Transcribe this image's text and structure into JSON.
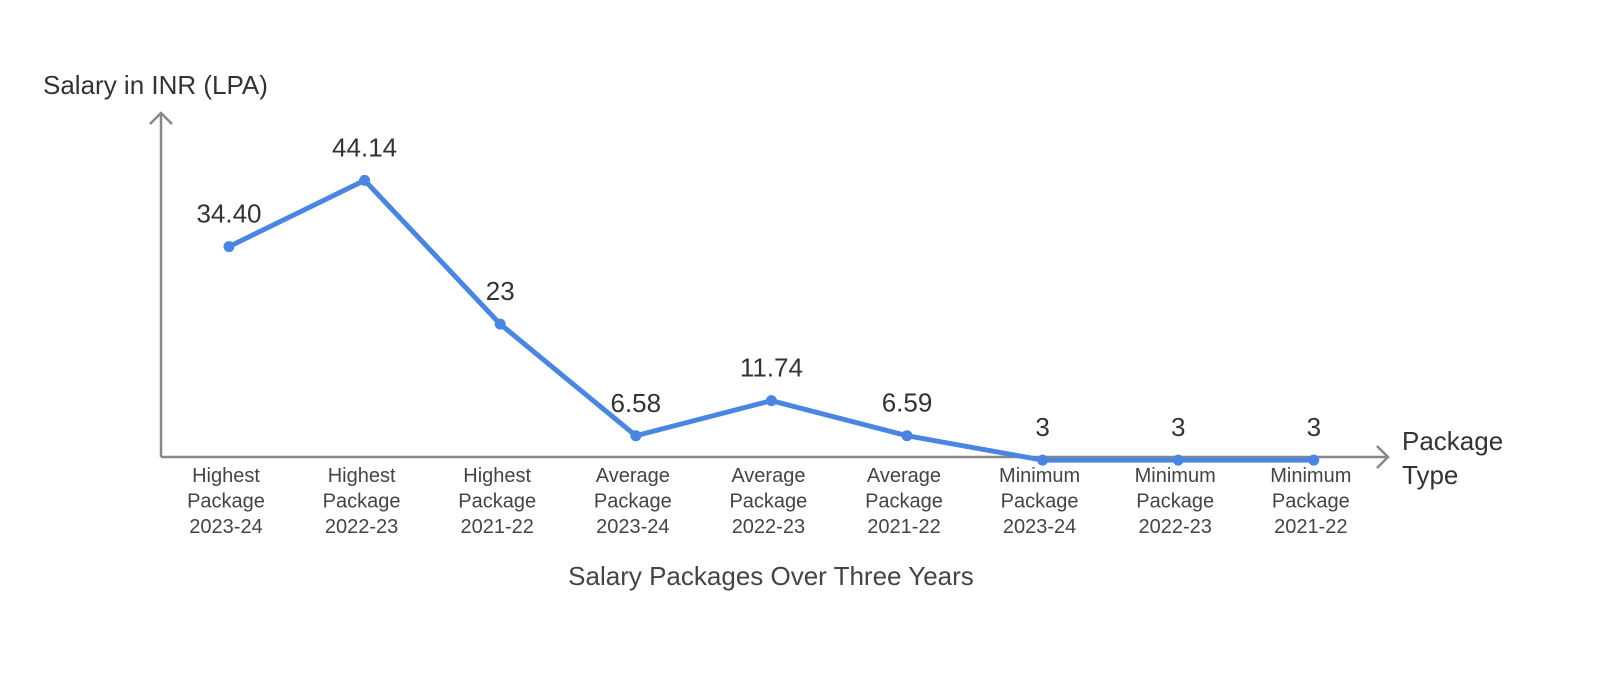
{
  "chart_data": {
    "type": "line",
    "title": "Salary Packages Over Three Years",
    "ylabel": "Salary in INR (LPA)",
    "xlabel": [
      "Package",
      "Type"
    ],
    "ylim": [
      0,
      50
    ],
    "grid": false,
    "categories": [
      [
        "Highest",
        "Package",
        "2023-24"
      ],
      [
        "Highest",
        "Package",
        "2022-23"
      ],
      [
        "Highest",
        "Package",
        "2021-22"
      ],
      [
        "Average",
        "Package",
        "2023-24"
      ],
      [
        "Average",
        "Package",
        "2022-23"
      ],
      [
        "Average",
        "Package",
        "2021-22"
      ],
      [
        "Minimum",
        "Package",
        "2023-24"
      ],
      [
        "Minimum",
        "Package",
        "2022-23"
      ],
      [
        "Minimum",
        "Package",
        "2021-22"
      ]
    ],
    "values": [
      34.4,
      44.14,
      23,
      6.58,
      11.74,
      6.59,
      3,
      3,
      3
    ],
    "data_labels": [
      "34.40",
      "44.14",
      "23",
      "6.58",
      "11.74",
      "6.59",
      "3",
      "3",
      "3"
    ],
    "colors": {
      "line": "#4a86e0",
      "axis": "#888888"
    }
  }
}
